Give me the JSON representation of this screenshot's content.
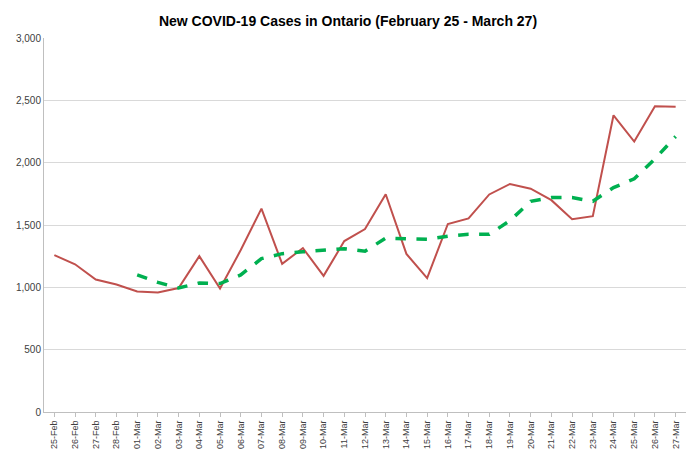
{
  "chart_data": {
    "type": "line",
    "title": "New COVID-19 Cases in Ontario (February 25 - March 27)",
    "categories": [
      "25-Feb",
      "26-Feb",
      "27-Feb",
      "28-Feb",
      "01-Mar",
      "02-Mar",
      "03-Mar",
      "04-Mar",
      "05-Mar",
      "06-Mar",
      "07-Mar",
      "08-Mar",
      "09-Mar",
      "10-Mar",
      "11-Mar",
      "12-Mar",
      "13-Mar",
      "14-Mar",
      "15-Mar",
      "16-Mar",
      "17-Mar",
      "18-Mar",
      "19-Mar",
      "20-Mar",
      "21-Mar",
      "22-Mar",
      "23-Mar",
      "24-Mar",
      "25-Mar",
      "26-Mar",
      "27-Mar"
    ],
    "series": [
      {
        "color": "#c0504d",
        "line_style": "solid",
        "values": [
          1258,
          1185,
          1063,
          1023,
          966,
          958,
          994,
          1250,
          990,
          1299,
          1631,
          1188,
          1315,
          1092,
          1371,
          1467,
          1747,
          1268,
          1074,
          1508,
          1553,
          1745,
          1829,
          1791,
          1699,
          1546,
          1571,
          2380,
          2169,
          2453,
          2448
        ]
      },
      {
        "color": "#00b050",
        "line_style": "dashed",
        "values": [
          null,
          null,
          null,
          null,
          1100,
          1040,
          995,
          1035,
          1030,
          1100,
          1230,
          1270,
          1285,
          1300,
          1310,
          1290,
          1395,
          1390,
          1385,
          1410,
          1425,
          1425,
          1535,
          1690,
          1720,
          1720,
          1690,
          1800,
          1870,
          2030,
          2210
        ]
      }
    ],
    "ylim": [
      0,
      3000
    ],
    "yticks": [
      0,
      500,
      {
        "value": 1000,
        "label": "1,000"
      },
      {
        "value": 1500,
        "label": "1,500"
      },
      {
        "value": 2000,
        "label": "2,000"
      },
      {
        "value": 2500,
        "label": "2,500"
      },
      {
        "value": 3000,
        "label": "3,000"
      }
    ],
    "grid": true
  }
}
